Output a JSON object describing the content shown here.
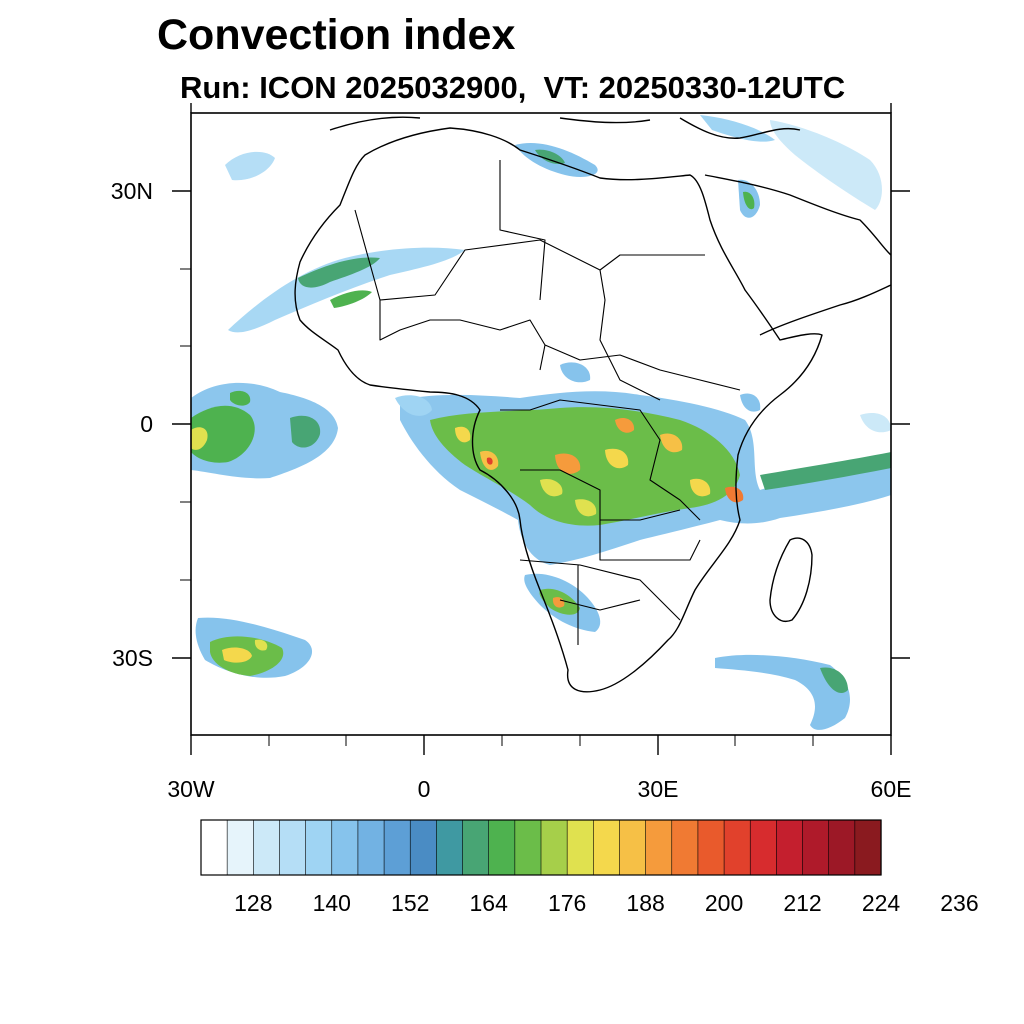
{
  "title": "Convection index",
  "subtitle": "Run: ICON 2025032900,  VT: 20250330-12UTC",
  "map": {
    "lon_range": [
      -30,
      60
    ],
    "lat_range": [
      -40,
      40
    ],
    "lat_ticks": [
      {
        "value": 30,
        "label": "30N"
      },
      {
        "value": 0,
        "label": "0"
      },
      {
        "value": -30,
        "label": "30S"
      }
    ],
    "lon_ticks": [
      {
        "value": -30,
        "label": "30W"
      },
      {
        "value": 0,
        "label": "0"
      },
      {
        "value": 30,
        "label": "30E"
      },
      {
        "value": 60,
        "label": "60E"
      }
    ]
  },
  "colorbar": {
    "colors": [
      "#ffffff",
      "#e6f4fb",
      "#cce9f8",
      "#b5def6",
      "#9fd4f3",
      "#86c3ec",
      "#72b2e3",
      "#5d9fd6",
      "#4a8cc4",
      "#3f99a2",
      "#48a574",
      "#4eb24f",
      "#6bbd49",
      "#a6cf4a",
      "#e0e14f",
      "#f4d84c",
      "#f6c046",
      "#f59b3c",
      "#f07a33",
      "#e95a2c",
      "#e1412c",
      "#d72c2e",
      "#c41f2e",
      "#af1a2a",
      "#9c1826",
      "#8a1a1f"
    ],
    "labels": [
      "128",
      "140",
      "152",
      "164",
      "176",
      "188",
      "200",
      "212",
      "224",
      "236"
    ]
  }
}
